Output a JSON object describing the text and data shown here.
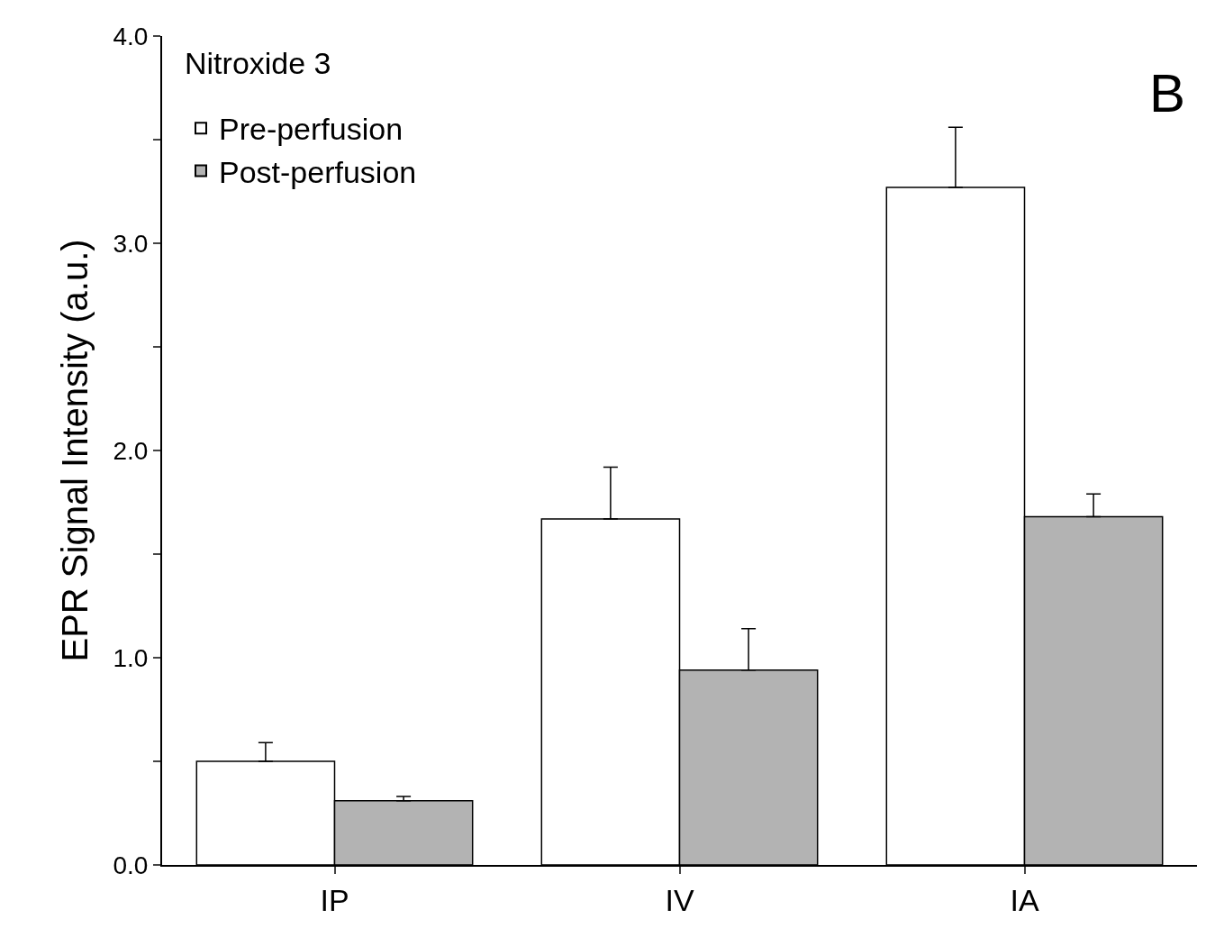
{
  "chart_data": {
    "type": "bar",
    "ylabel": "EPR Signal Intensity (a.u.)",
    "categories": [
      "IP",
      "IV",
      "IA"
    ],
    "series": [
      {
        "name": "Pre-perfusion",
        "color": "#ffffff",
        "values": [
          0.5,
          1.67,
          3.27
        ],
        "errors": [
          [
            0.5,
            0.59
          ],
          [
            1.67,
            1.92
          ],
          [
            3.27,
            3.56
          ]
        ]
      },
      {
        "name": "Post-perfusion",
        "color": "#b3b3b3",
        "values": [
          0.31,
          0.94,
          1.68
        ],
        "errors": [
          [
            0.31,
            0.33
          ],
          [
            0.94,
            1.14
          ],
          [
            1.68,
            1.79
          ]
        ]
      }
    ],
    "ylim": [
      0,
      4
    ],
    "yticks": [
      {
        "value": 0,
        "label": "0.0"
      },
      {
        "value": 0.5,
        "label": null
      },
      {
        "value": 1,
        "label": "1.0"
      },
      {
        "value": 1.5,
        "label": null
      },
      {
        "value": 2,
        "label": "2.0"
      },
      {
        "value": 2.5,
        "label": null
      },
      {
        "value": 3,
        "label": "3.0"
      },
      {
        "value": 3.5,
        "label": null
      },
      {
        "value": 4,
        "label": "4.0"
      }
    ],
    "annotations": [
      "Nitroxide 3",
      "B"
    ],
    "legend": "top left"
  }
}
